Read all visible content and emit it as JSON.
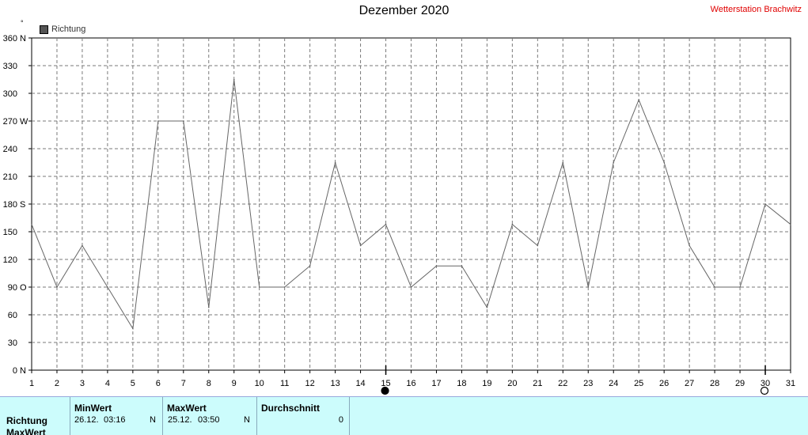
{
  "header": {
    "title": "Dezember 2020",
    "station": "Wetterstation Brachwitz",
    "unit_symbol": "°"
  },
  "legend": {
    "label": "Richtung"
  },
  "chart_data": {
    "type": "line",
    "title": "Dezember 2020",
    "xlim": [
      1,
      31
    ],
    "ylim": [
      0,
      360
    ],
    "grid": true,
    "x_ticks": [
      "1",
      "2",
      "3",
      "4",
      "5",
      "6",
      "7",
      "8",
      "9",
      "10",
      "11",
      "12",
      "13",
      "14",
      "15",
      "16",
      "17",
      "18",
      "19",
      "20",
      "21",
      "22",
      "23",
      "24",
      "25",
      "26",
      "27",
      "28",
      "29",
      "30",
      "31"
    ],
    "y_ticks": [
      {
        "value": 0,
        "label": "0",
        "dir": "N"
      },
      {
        "value": 30,
        "label": "30",
        "dir": ""
      },
      {
        "value": 60,
        "label": "60",
        "dir": ""
      },
      {
        "value": 90,
        "label": "90",
        "dir": "O"
      },
      {
        "value": 120,
        "label": "120",
        "dir": ""
      },
      {
        "value": 150,
        "label": "150",
        "dir": ""
      },
      {
        "value": 180,
        "label": "180",
        "dir": "S"
      },
      {
        "value": 210,
        "label": "210",
        "dir": ""
      },
      {
        "value": 240,
        "label": "240",
        "dir": ""
      },
      {
        "value": 270,
        "label": "270",
        "dir": "W"
      },
      {
        "value": 300,
        "label": "300",
        "dir": ""
      },
      {
        "value": 330,
        "label": "330",
        "dir": ""
      },
      {
        "value": 360,
        "label": "360",
        "dir": "N"
      }
    ],
    "series": [
      {
        "name": "Richtung",
        "color": "#666666",
        "x": [
          1,
          2,
          3,
          4,
          5,
          6,
          7,
          8,
          9,
          10,
          11,
          12,
          13,
          14,
          15,
          16,
          17,
          18,
          19,
          20,
          21,
          22,
          23,
          24,
          25,
          26,
          27,
          28,
          29,
          30,
          31
        ],
        "y": [
          158,
          90,
          135,
          90,
          45,
          270,
          270,
          68,
          315,
          90,
          90,
          113,
          225,
          135,
          158,
          90,
          113,
          113,
          68,
          158,
          135,
          225,
          90,
          225,
          293,
          225,
          135,
          90,
          90,
          180,
          158
        ]
      }
    ],
    "moon_phases": [
      {
        "day": 15,
        "phase": "new"
      },
      {
        "day": 30,
        "phase": "full"
      }
    ]
  },
  "stats": {
    "row_labels": [
      "Richtung",
      "MaxWert"
    ],
    "min": {
      "header": "MinWert",
      "date": "26.12.",
      "time": "03:16",
      "dir": "N"
    },
    "max": {
      "header": "MaxWert",
      "date": "25.12.",
      "time": "03:50",
      "dir": "N"
    },
    "avg": {
      "header": "Durchschnitt",
      "value": "0"
    }
  }
}
